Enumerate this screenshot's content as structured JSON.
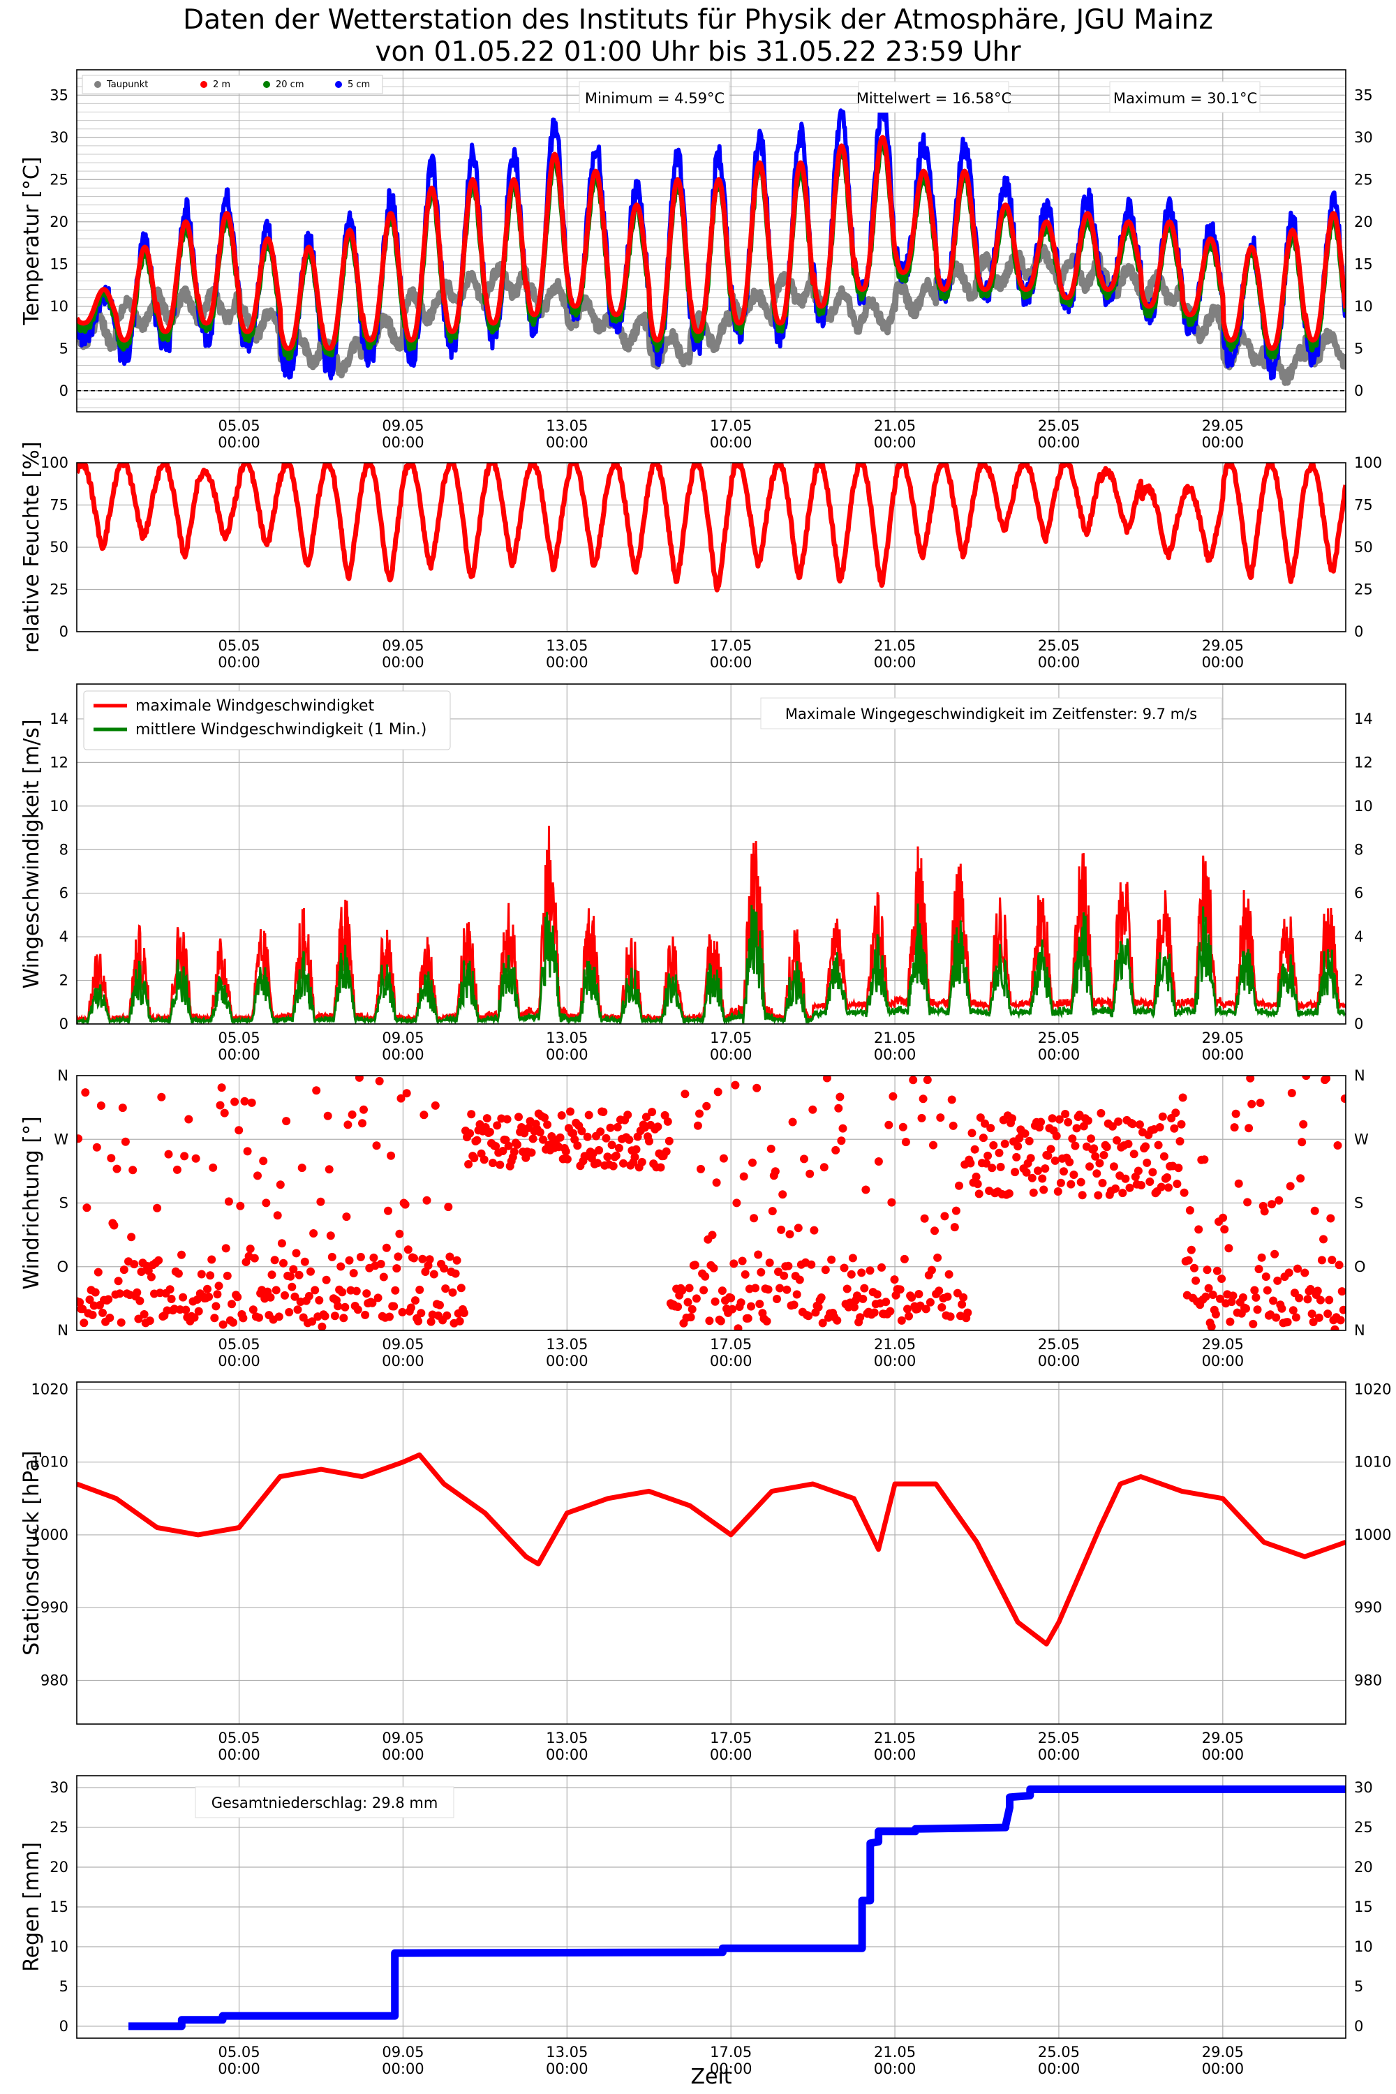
{
  "title": {
    "line1": "Daten der Wetterstation des Instituts für Physik der Atmosphäre, JGU Mainz",
    "line2": "von 01.05.22 01:00 Uhr bis 31.05.22 23:59 Uhr"
  },
  "x_axis": {
    "label": "Zeit",
    "ticks": [
      {
        "day": 5,
        "line1": "05.05",
        "line2": "00:00"
      },
      {
        "day": 9,
        "line1": "09.05",
        "line2": "00:00"
      },
      {
        "day": 13,
        "line1": "13.05",
        "line2": "00:00"
      },
      {
        "day": 17,
        "line1": "17.05",
        "line2": "00:00"
      },
      {
        "day": 21,
        "line1": "21.05",
        "line2": "00:00"
      },
      {
        "day": 25,
        "line1": "25.05",
        "line2": "00:00"
      },
      {
        "day": 29,
        "line1": "29.05",
        "line2": "00:00"
      }
    ],
    "range_days": [
      1.04,
      32.0
    ]
  },
  "chart_data": [
    {
      "id": "temperature",
      "type": "scatter",
      "ylabel": "Temperatur [°C]",
      "ylim": [
        -2.5,
        38
      ],
      "yticks": [
        0,
        5,
        10,
        15,
        20,
        25,
        30,
        35
      ],
      "fine_grid": true,
      "zero_line": true,
      "legend": {
        "placement": "top-left",
        "entries": [
          "Taupunkt",
          "2 m",
          "20 cm",
          "5 cm"
        ]
      },
      "annotations": [
        "Minimum = 4.59°C",
        "Mittelwert = 16.58°C",
        "Maximum = 30.1°C"
      ],
      "daily_max_2m": [
        12,
        17,
        20,
        21,
        18,
        17,
        19,
        21,
        24,
        25,
        25,
        28,
        26,
        22,
        25,
        25,
        27,
        27,
        29,
        30,
        26,
        26,
        22,
        20,
        21,
        20,
        20,
        18,
        17,
        19,
        21
      ],
      "daily_min_2m": [
        8,
        6,
        7,
        8,
        7,
        5,
        5,
        6,
        6,
        7,
        8,
        9,
        10,
        9,
        6,
        7,
        8,
        8,
        10,
        12,
        14,
        12,
        12,
        12,
        11,
        12,
        10,
        9,
        6,
        5,
        6
      ],
      "daily_dewpoint": [
        7,
        9,
        10,
        10,
        8,
        5,
        4,
        7,
        10,
        12,
        13,
        11,
        9,
        7,
        5,
        7,
        10,
        12,
        10,
        9,
        11,
        13,
        14,
        15,
        14,
        13,
        12,
        8,
        5,
        3,
        5
      ],
      "series": [
        {
          "name": "Taupunkt",
          "color": "#808080"
        },
        {
          "name": "2 m",
          "color": "#ff0000"
        },
        {
          "name": "20 cm",
          "color": "#008000"
        },
        {
          "name": "5 cm",
          "color": "#0000ff"
        }
      ]
    },
    {
      "id": "humidity",
      "type": "scatter",
      "ylabel": "relative Feuchte [%]",
      "ylim": [
        0,
        100
      ],
      "yticks": [
        0,
        25,
        50,
        75,
        100
      ],
      "daily_min": [
        50,
        55,
        45,
        55,
        50,
        38,
        32,
        30,
        38,
        32,
        40,
        38,
        38,
        35,
        30,
        25,
        40,
        32,
        30,
        28,
        45,
        45,
        60,
        55,
        58,
        60,
        45,
        42,
        32,
        30,
        35
      ],
      "daily_max": [
        100,
        100,
        100,
        95,
        100,
        100,
        100,
        100,
        100,
        100,
        100,
        100,
        100,
        100,
        100,
        100,
        100,
        100,
        100,
        100,
        100,
        100,
        100,
        100,
        100,
        95,
        85,
        85,
        100,
        100,
        98
      ],
      "series": [
        {
          "name": "relative Feuchte",
          "color": "#ff0000"
        }
      ]
    },
    {
      "id": "wind_speed",
      "type": "line",
      "ylabel": "Wingeschwindigkeit [m/s]",
      "ylim": [
        0,
        15.6
      ],
      "yticks": [
        0,
        2,
        4,
        6,
        8,
        10,
        12,
        14
      ],
      "legend": {
        "placement": "top-left",
        "entries": [
          "maximale Windgeschwindigket",
          "mittlere Windgeschwindigkeit (1 Min.)"
        ]
      },
      "annotations": [
        "Maximale Wingegeschwindigkeit im Zeitfenster: 9.7 m/s"
      ],
      "daily_gust_max": [
        3.5,
        4.5,
        5.0,
        4.0,
        4.5,
        5.5,
        6.0,
        4.5,
        4.0,
        5.0,
        6.5,
        9.2,
        5.5,
        4.5,
        4.0,
        5.0,
        9.7,
        5.0,
        4.5,
        5.5,
        8.0,
        7.0,
        5.5,
        6.0,
        7.5,
        7.0,
        6.5,
        7.5,
        6.0,
        5.0,
        5.5
      ],
      "series": [
        {
          "name": "maximale Windgeschwindigket",
          "color": "#ff0000"
        },
        {
          "name": "mittlere Windgeschwindigkeit (1 Min.)",
          "color": "#008000"
        }
      ]
    },
    {
      "id": "wind_direction",
      "type": "scatter",
      "ylabel": "Windrichtung [°]",
      "ylim": [
        0,
        360
      ],
      "yticks": [
        0,
        90,
        180,
        270,
        360
      ],
      "ytick_labels": [
        "N",
        "O",
        "S",
        "W",
        "N"
      ],
      "series": [
        {
          "name": "Windrichtung",
          "color": "#ff0000"
        }
      ]
    },
    {
      "id": "pressure",
      "type": "line",
      "ylabel": "Stationsdruck [hPa]",
      "ylim": [
        974,
        1021
      ],
      "yticks": [
        980,
        990,
        1000,
        1010,
        1020
      ],
      "x": [
        1.04,
        2.0,
        3.0,
        4.0,
        5.0,
        6.0,
        7.0,
        8.0,
        9.0,
        9.4,
        10.0,
        11.0,
        12.0,
        12.3,
        13.0,
        14.0,
        15.0,
        16.0,
        17.0,
        18.0,
        19.0,
        20.0,
        20.6,
        21.0,
        22.0,
        23.0,
        24.0,
        24.7,
        25.0,
        26.0,
        26.5,
        27.0,
        28.0,
        29.0,
        30.0,
        31.0,
        32.0
      ],
      "values": [
        1007,
        1005,
        1001,
        1000,
        1001,
        1008,
        1009,
        1008,
        1010,
        1011,
        1007,
        1003,
        997,
        996,
        1003,
        1005,
        1006,
        1004,
        1000,
        1006,
        1007,
        1005,
        998,
        1007,
        1007,
        999,
        988,
        985,
        988,
        1001,
        1007,
        1008,
        1006,
        1005,
        999,
        997,
        999
      ],
      "series": [
        {
          "name": "Stationsdruck",
          "color": "#ff0000"
        }
      ]
    },
    {
      "id": "rain",
      "type": "line",
      "ylabel": "Regen [mm]",
      "xlabel": "Zeit",
      "ylim": [
        -1.5,
        31.5
      ],
      "yticks": [
        0,
        5,
        10,
        15,
        20,
        25,
        30
      ],
      "annotations": [
        "Gesamtniederschlag: 29.8 mm"
      ],
      "x": [
        2.3,
        3.6,
        3.6,
        4.6,
        4.6,
        8.8,
        8.8,
        8.9,
        8.9,
        16.8,
        16.8,
        20.2,
        20.2,
        20.4,
        20.4,
        20.6,
        20.6,
        21.5,
        21.5,
        23.7,
        23.7,
        23.8,
        23.8,
        24.3,
        24.3,
        32.0
      ],
      "values": [
        0,
        0,
        0.8,
        0.8,
        1.3,
        1.3,
        9.2,
        9.2,
        9.2,
        9.3,
        9.8,
        9.8,
        15.8,
        15.8,
        23.0,
        23.2,
        24.5,
        24.5,
        24.8,
        25.0,
        25.2,
        27.5,
        28.8,
        29.0,
        29.8,
        29.8
      ],
      "series": [
        {
          "name": "Regen",
          "color": "#0000ff"
        }
      ]
    }
  ]
}
